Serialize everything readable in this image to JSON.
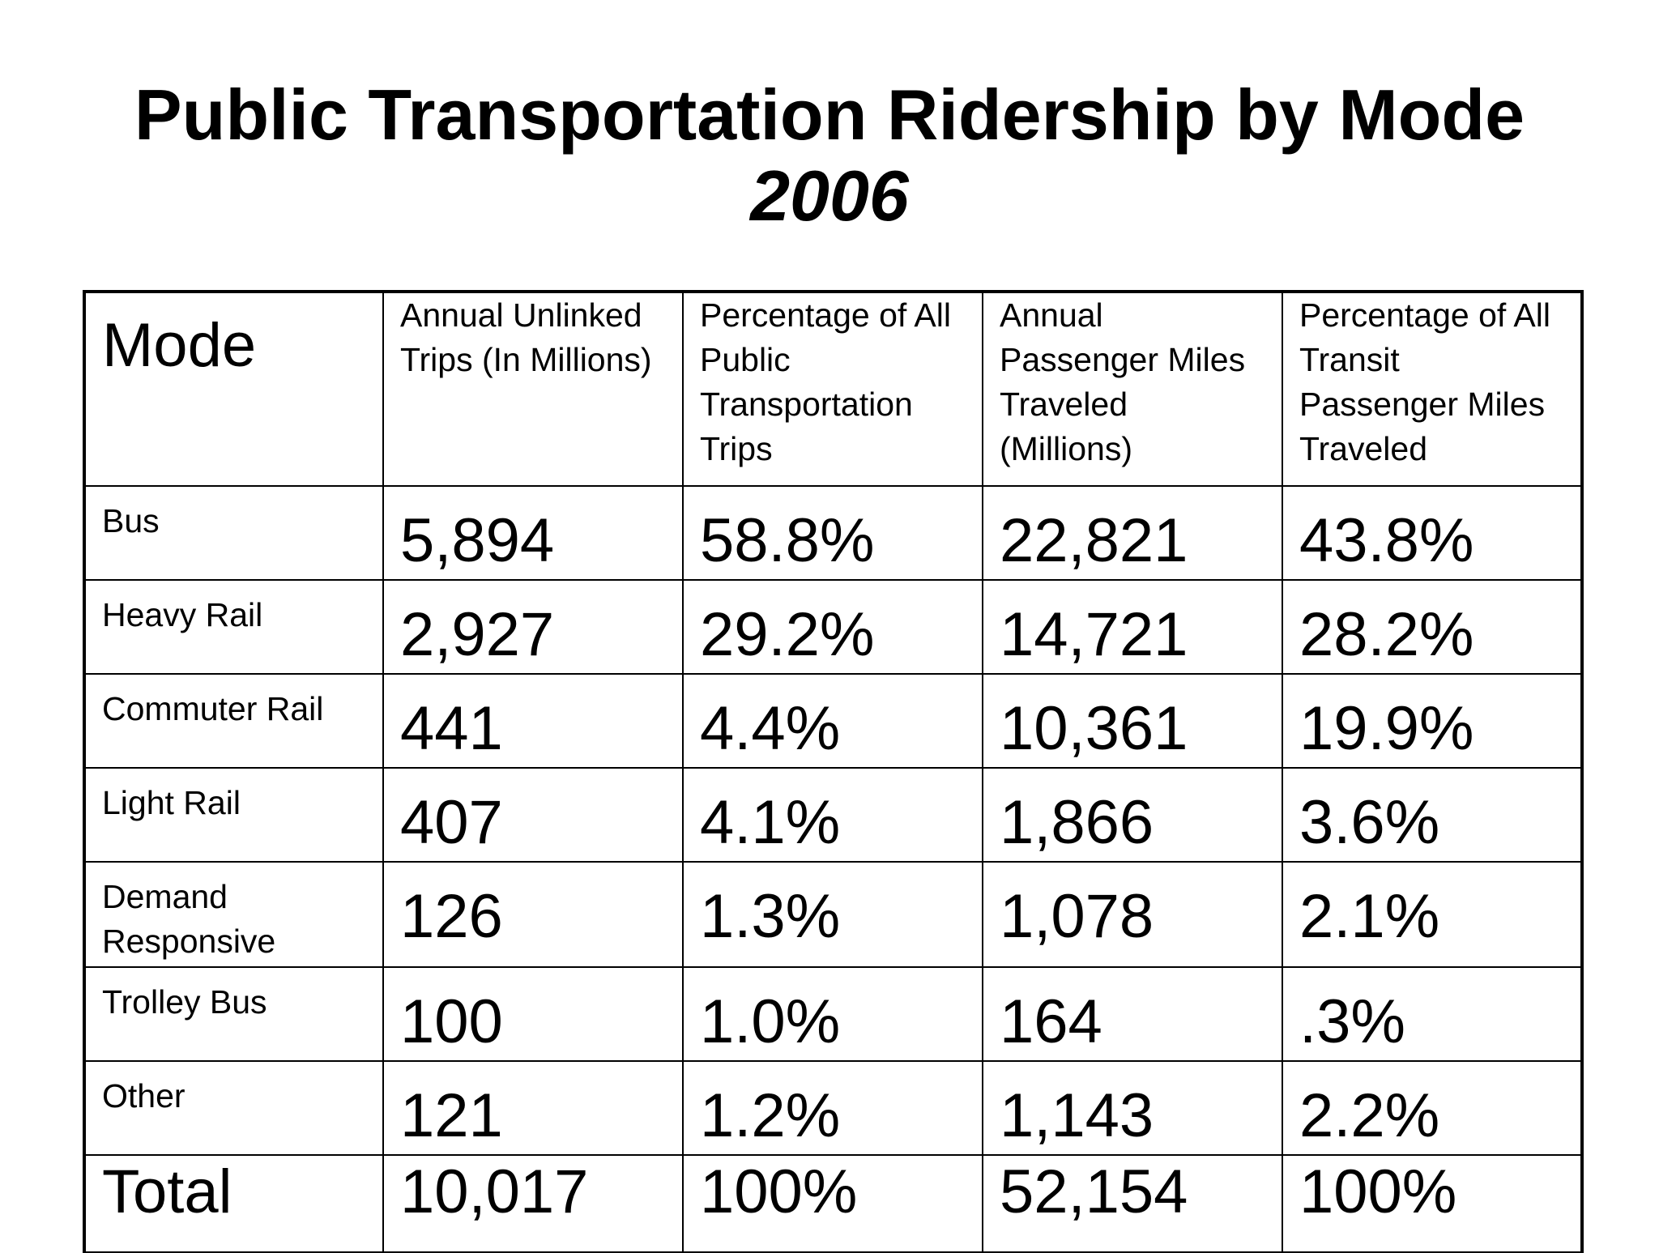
{
  "title": "Public Transportation Ridership by Mode",
  "subtitle": "2006",
  "table": {
    "headers": [
      "Mode",
      "Annual Unlinked Trips (In Millions)",
      "Percentage of All Public Transportation Trips",
      "Annual Passenger Miles Traveled (Millions)",
      "Percentage of All Transit Passenger Miles Traveled"
    ],
    "rows": [
      {
        "mode": "Bus",
        "trips": "5,894",
        "trips_pct": "58.8%",
        "miles": "22,821",
        "miles_pct": "43.8%"
      },
      {
        "mode": "Heavy Rail",
        "trips": "2,927",
        "trips_pct": "29.2%",
        "miles": "14,721",
        "miles_pct": "28.2%"
      },
      {
        "mode": "Commuter Rail",
        "trips": "441",
        "trips_pct": "4.4%",
        "miles": "10,361",
        "miles_pct": "19.9%"
      },
      {
        "mode": "Light Rail",
        "trips": "407",
        "trips_pct": "4.1%",
        "miles": "1,866",
        "miles_pct": "3.6%"
      },
      {
        "mode": "Demand Responsive",
        "trips": "126",
        "trips_pct": "1.3%",
        "miles": "1,078",
        "miles_pct": "2.1%"
      },
      {
        "mode": "Trolley Bus",
        "trips": "100",
        "trips_pct": "1.0%",
        "miles": "164",
        "miles_pct": ".3%"
      },
      {
        "mode": "Other",
        "trips": "121",
        "trips_pct": "1.2%",
        "miles": "1,143",
        "miles_pct": "2.2%"
      }
    ],
    "total": {
      "mode": "Total",
      "trips": "10,017",
      "trips_pct": "100%",
      "miles": "52,154",
      "miles_pct": "100%"
    }
  }
}
